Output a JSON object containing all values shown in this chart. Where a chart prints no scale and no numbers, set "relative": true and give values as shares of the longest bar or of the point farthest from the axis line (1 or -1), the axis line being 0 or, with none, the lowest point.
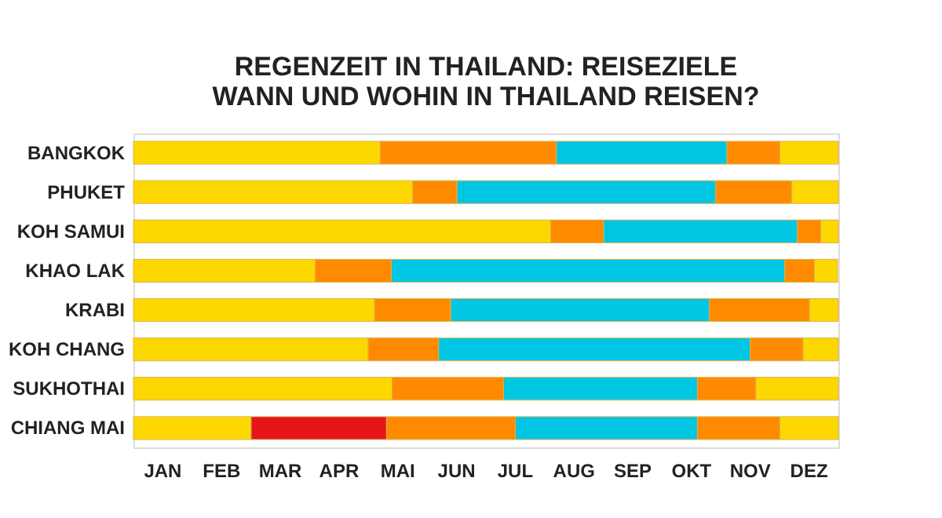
{
  "chart_data": {
    "type": "bar",
    "orientation": "horizontal",
    "stacked": true,
    "relative": true,
    "title": [
      "REGENZEIT IN THAILAND: REISEZIELE",
      "WANN UND WOHIN IN THAILAND REISEN?"
    ],
    "categories": [
      "BANGKOK",
      "PHUKET",
      "KOH SAMUI",
      "KHAO LAK",
      "KRABI",
      "KOH CHANG",
      "SUKHOTHAI",
      "CHIANG MAI"
    ],
    "series": [
      {
        "color": "#fdd800",
        "values": [
          0.35,
          0.396,
          0.592,
          0.258,
          0.342,
          0.333,
          0.367,
          0.167
        ]
      },
      {
        "color": "#e8141c",
        "values": [
          null,
          null,
          null,
          null,
          null,
          null,
          null,
          0.192
        ]
      },
      {
        "color": "#ff8a00",
        "values": [
          0.25,
          0.063,
          0.075,
          0.108,
          0.108,
          0.1,
          0.158,
          0.183
        ]
      },
      {
        "color": "#00c6e4",
        "values": [
          0.242,
          0.367,
          0.275,
          0.558,
          0.367,
          0.442,
          0.275,
          0.258
        ]
      },
      {
        "color": "#ff8a00",
        "values": [
          0.075,
          0.108,
          0.033,
          0.042,
          0.142,
          0.075,
          0.083,
          0.117
        ]
      },
      {
        "color": "#fdd800",
        "values": [
          0.083,
          0.066,
          0.025,
          0.033,
          0.041,
          0.05,
          0.117,
          0.083
        ]
      }
    ],
    "annotations": [
      "JAN",
      "FEB",
      "MAR",
      "APR",
      "MAI",
      "JUN",
      "JUL",
      "AUG",
      "SEP",
      "OKT",
      "NOV",
      "DEZ"
    ],
    "legend": false
  }
}
